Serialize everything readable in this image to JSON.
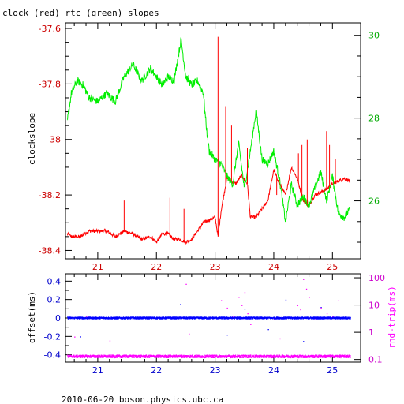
{
  "chart_data": [
    {
      "type": "line",
      "title": "clock (red) rtc (green) slopes",
      "ylabel": "clockslope",
      "xlim": [
        20.45,
        25.48
      ],
      "x_ticks": [
        21,
        22,
        23,
        24,
        25
      ],
      "x_tick_labels": [
        "21",
        "22",
        "23",
        "24",
        "25"
      ],
      "ylim_left": [
        -38.43,
        -37.58
      ],
      "y_ticks_left": [
        -37.6,
        -37.8,
        -38,
        -38.2,
        -38.4
      ],
      "y_tick_labels_left": [
        "-37.6",
        "-37.8",
        "-38",
        "-38.2",
        "-38.4"
      ],
      "ylim_right": [
        24.6,
        30.3
      ],
      "y_ticks_right": [
        30,
        28,
        26
      ],
      "y_tick_labels_right": [
        "30",
        "28",
        "26"
      ],
      "series": [
        {
          "color": "#ff0000",
          "axis": "left",
          "x": [
            20.48,
            20.55,
            20.7,
            20.85,
            21.0,
            21.15,
            21.3,
            21.45,
            21.6,
            21.75,
            21.9,
            22.0,
            22.1,
            22.2,
            22.3,
            22.4,
            22.5,
            22.6,
            22.7,
            22.8,
            22.9,
            23.0,
            23.05,
            23.1,
            23.2,
            23.35,
            23.45,
            23.55,
            23.6,
            23.7,
            23.8,
            23.9,
            24.0,
            24.1,
            24.2,
            24.3,
            24.4,
            24.5,
            24.6,
            24.7,
            24.8,
            24.9,
            25.0,
            25.1,
            25.2,
            25.3
          ],
          "y": [
            -38.34,
            -38.35,
            -38.35,
            -38.33,
            -38.33,
            -38.33,
            -38.35,
            -38.33,
            -38.34,
            -38.36,
            -38.35,
            -38.37,
            -38.34,
            -38.34,
            -38.36,
            -38.36,
            -38.37,
            -38.36,
            -38.33,
            -38.3,
            -38.29,
            -38.28,
            -38.35,
            -38.26,
            -38.14,
            -38.16,
            -38.13,
            -38.16,
            -38.28,
            -38.28,
            -38.25,
            -38.22,
            -38.11,
            -38.16,
            -38.2,
            -38.1,
            -38.14,
            -38.22,
            -38.24,
            -38.2,
            -38.19,
            -38.18,
            -38.16,
            -38.15,
            -38.14,
            -38.15
          ]
        },
        {
          "color": "#00ee00",
          "axis": "right",
          "x": [
            20.48,
            20.55,
            20.65,
            20.75,
            20.85,
            21.0,
            21.15,
            21.3,
            21.45,
            21.6,
            21.75,
            21.9,
            22.0,
            22.1,
            22.2,
            22.3,
            22.42,
            22.5,
            22.6,
            22.7,
            22.8,
            22.85,
            22.9,
            23.0,
            23.1,
            23.2,
            23.3,
            23.4,
            23.5,
            23.6,
            23.7,
            23.8,
            23.9,
            24.0,
            24.1,
            24.2,
            24.3,
            24.4,
            24.5,
            24.6,
            24.7,
            24.8,
            24.9,
            25.0,
            25.1,
            25.2,
            25.3
          ],
          "y": [
            27.9,
            28.6,
            28.9,
            28.8,
            28.5,
            28.4,
            28.6,
            28.4,
            29.0,
            29.3,
            28.9,
            29.2,
            29.0,
            28.8,
            29.0,
            28.9,
            29.9,
            29.0,
            28.8,
            28.9,
            28.6,
            27.8,
            27.2,
            27.0,
            26.9,
            26.6,
            26.4,
            27.4,
            26.3,
            27.2,
            28.2,
            27.0,
            26.9,
            27.2,
            26.5,
            25.5,
            26.4,
            25.9,
            26.1,
            25.9,
            26.3,
            26.7,
            26.0,
            26.6,
            25.7,
            25.6,
            25.8
          ]
        }
      ],
      "spikes": [
        {
          "color": "#ff0000",
          "axis": "left",
          "x": [
            21.45,
            22.23,
            22.47,
            23.05,
            23.18,
            23.28,
            23.55,
            24.05,
            24.42,
            24.48,
            24.57,
            24.9,
            24.95,
            25.05
          ],
          "y": [
            -38.22,
            -38.21,
            -38.25,
            -37.63,
            -37.88,
            -37.95,
            -38.03,
            -38.2,
            -38.05,
            -38.02,
            -38.0,
            -37.97,
            -38.02,
            -38.07
          ]
        }
      ]
    },
    {
      "type": "scatter",
      "ylabel_left": "offset(ms)",
      "ylabel_right": "rnd-trip(ms)",
      "xlim": [
        20.45,
        25.48
      ],
      "x_ticks": [
        21,
        22,
        23,
        24,
        25
      ],
      "x_tick_labels": [
        "21",
        "22",
        "23",
        "24",
        "25"
      ],
      "ylim_left": [
        -0.48,
        0.48
      ],
      "y_ticks_left": [
        0.4,
        0.2,
        0,
        -0.2,
        -0.4
      ],
      "y_tick_labels_left": [
        "0.4",
        "0.2",
        "0",
        "-0.2",
        "-0.4"
      ],
      "yscale_right": "log",
      "ylim_right": [
        0.08,
        140
      ],
      "y_ticks_right": [
        100,
        10,
        1,
        0.1
      ],
      "y_tick_labels_right": [
        "100",
        "10",
        "1",
        "0.1"
      ],
      "series": [
        {
          "color": "#0000ff",
          "axis": "left",
          "x": [
            20.48,
            25.3
          ],
          "y": [
            0.0,
            0.0
          ]
        },
        {
          "color": "#ff00ff",
          "axis": "right",
          "x": [
            20.48,
            25.3
          ],
          "y": [
            0.13,
            0.13
          ]
        }
      ],
      "outliers": [
        {
          "color": "#0000ff",
          "axis": "left",
          "x": [
            20.7,
            22.4,
            23.2,
            23.5,
            23.9,
            24.2,
            24.5,
            24.8
          ],
          "y": [
            -0.2,
            0.15,
            -0.18,
            0.1,
            -0.12,
            0.2,
            -0.25,
            0.12
          ]
        },
        {
          "color": "#ff00ff",
          "axis": "right",
          "x": [
            20.6,
            20.8,
            21.2,
            22.5,
            22.55,
            23.1,
            23.2,
            23.3,
            23.4,
            23.45,
            23.5,
            23.55,
            23.6,
            24.0,
            24.1,
            24.4,
            24.45,
            24.5,
            24.55,
            24.6,
            24.7,
            24.8,
            24.9,
            25.0,
            25.1
          ],
          "y": [
            0.7,
            4,
            0.5,
            60,
            0.9,
            15,
            8,
            4,
            20,
            10,
            30,
            5,
            2,
            3,
            0.6,
            10,
            7,
            90,
            40,
            20,
            3,
            8,
            5,
            4,
            15
          ]
        }
      ]
    }
  ],
  "footer": "2010-06-20  boson.physics.ubc.ca"
}
